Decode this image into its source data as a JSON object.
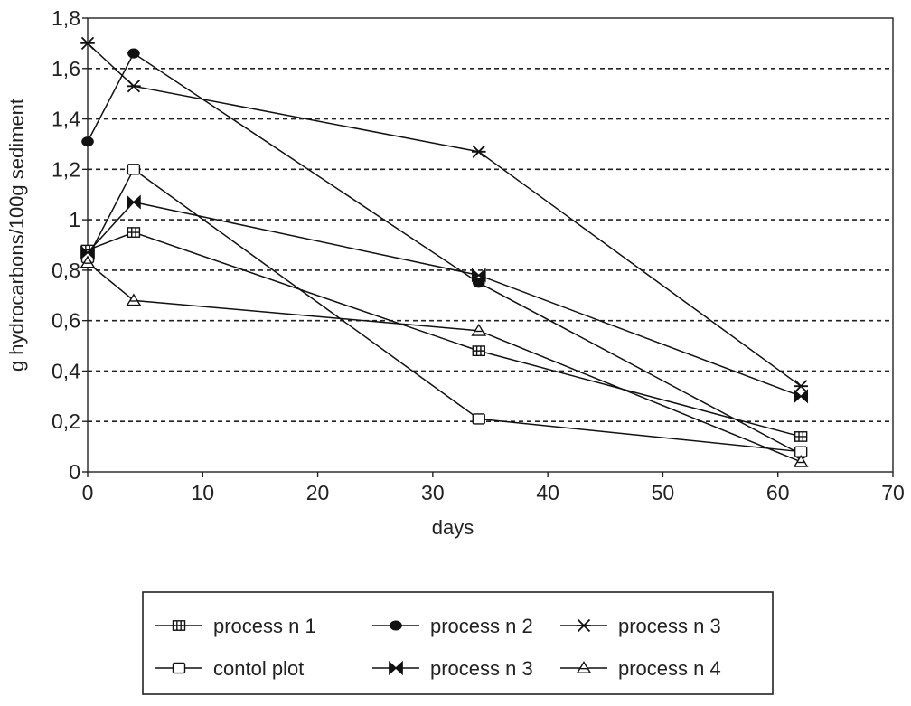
{
  "chart_data": {
    "type": "line",
    "xlabel": "days",
    "ylabel": "g hydrocarbons/100g sediment",
    "xlim": [
      0,
      70
    ],
    "ylim": [
      0,
      1.8
    ],
    "x_ticks": [
      0,
      10,
      20,
      30,
      40,
      50,
      60,
      70
    ],
    "x_tick_labels": [
      "0",
      "10",
      "20",
      "30",
      "40",
      "50",
      "60",
      "70"
    ],
    "y_ticks": [
      0,
      0.2,
      0.4,
      0.6,
      0.8,
      1.0,
      1.2,
      1.4,
      1.6,
      1.8
    ],
    "y_tick_labels": [
      "0",
      "0,2",
      "0,4",
      "0,6",
      "0,8",
      "1",
      "1,2",
      "1,4",
      "1,6",
      "1,8"
    ],
    "grid": "horizontal dashed",
    "legend_position": "bottom",
    "series": [
      {
        "name": "process n 1",
        "marker": "grid-square",
        "x": [
          0,
          4,
          34,
          62
        ],
        "y": [
          0.88,
          0.95,
          0.48,
          0.14
        ]
      },
      {
        "name": "process n 2",
        "marker": "filled-circle",
        "x": [
          0,
          4,
          34,
          62
        ],
        "y": [
          1.31,
          1.66,
          0.75,
          0.07
        ]
      },
      {
        "name": "process n 3",
        "marker": "asterisk",
        "x": [
          0,
          4,
          34,
          62
        ],
        "y": [
          1.7,
          1.53,
          1.27,
          0.34
        ]
      },
      {
        "name": "contol plot",
        "marker": "open-square",
        "x": [
          0,
          4,
          34,
          62
        ],
        "y": [
          0.85,
          1.2,
          0.21,
          0.08
        ]
      },
      {
        "name": "process n 3",
        "marker": "bowtie",
        "x": [
          0,
          4,
          34,
          62
        ],
        "y": [
          0.87,
          1.07,
          0.78,
          0.3
        ]
      },
      {
        "name": "process n 4",
        "marker": "triangle",
        "x": [
          0,
          4,
          34,
          62
        ],
        "y": [
          0.83,
          0.68,
          0.56,
          0.04
        ]
      }
    ]
  }
}
